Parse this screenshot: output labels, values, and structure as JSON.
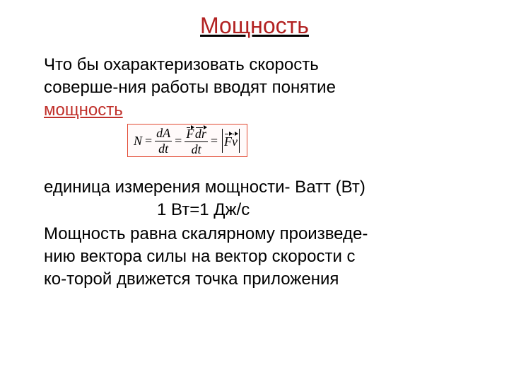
{
  "title": {
    "text": "Мощность",
    "color": "#b22222",
    "fontsize": 32,
    "underline": true
  },
  "body": {
    "fontsize": 24,
    "text_color": "#000000",
    "intro_line1": "Что бы охарактеризовать скорость",
    "intro_line2": "соверше-ния работы вводят понятие",
    "term": "мощность",
    "term_color": "#c0302b",
    "unit_line": "единица измерения мощности- Ватт (Вт)",
    "unit_eq": "1 Вт=1 Дж/с",
    "def_line1": "Мощность равна скалярному произведе-",
    "def_line2": "нию вектора силы на вектор скорости с",
    "def_line3": "ко-торой движется точка приложения"
  },
  "formula": {
    "box_border_color": "#e24a33",
    "font_family": "Times New Roman",
    "fontsize": 18,
    "N": "N",
    "eq": "=",
    "dA": "dA",
    "dt": "dt",
    "F": "F",
    "dr": "dr",
    "v": "v"
  }
}
